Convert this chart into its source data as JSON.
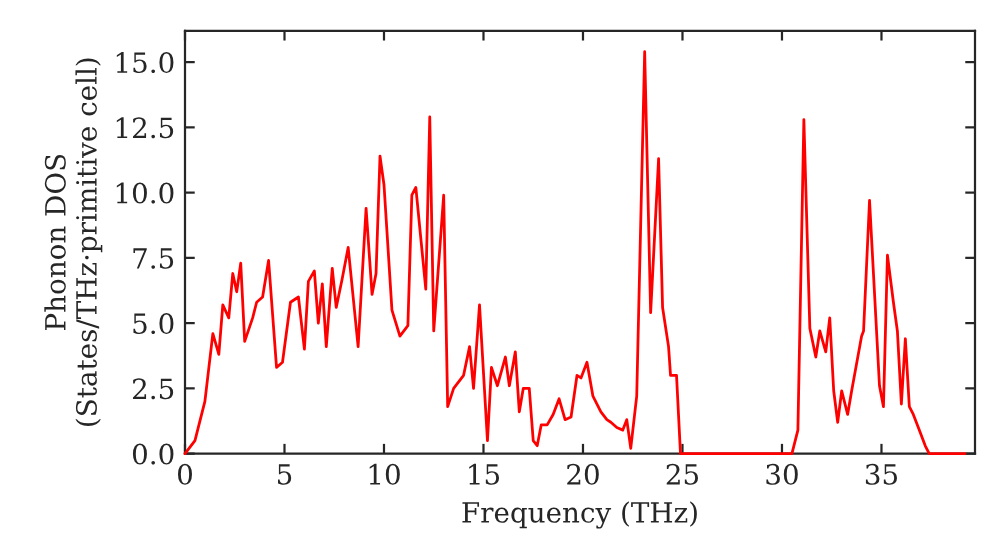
{
  "chart_data": {
    "type": "line",
    "xlabel": "Frequency (THz)",
    "ylabel": "Phonon DOS\n(States/THz·primitive cell)",
    "x": [
      0,
      0.5,
      1.0,
      1.4,
      1.7,
      1.9,
      2.2,
      2.4,
      2.6,
      2.8,
      3.0,
      3.4,
      3.6,
      3.9,
      4.2,
      4.6,
      4.9,
      5.3,
      5.7,
      6.0,
      6.2,
      6.5,
      6.7,
      6.9,
      7.1,
      7.4,
      7.6,
      7.9,
      8.2,
      8.7,
      9.1,
      9.4,
      9.6,
      9.8,
      10.0,
      10.4,
      10.8,
      11.2,
      11.4,
      11.6,
      12.1,
      12.3,
      12.5,
      13.0,
      13.2,
      13.5,
      14.0,
      14.3,
      14.5,
      14.8,
      15.2,
      15.4,
      15.7,
      16.1,
      16.3,
      16.6,
      16.8,
      17.0,
      17.3,
      17.5,
      17.7,
      17.9,
      18.2,
      18.5,
      18.8,
      19.1,
      19.4,
      19.7,
      19.9,
      20.2,
      20.5,
      20.9,
      21.2,
      21.4,
      21.7,
      22.0,
      22.2,
      22.4,
      22.7,
      23.1,
      23.4,
      23.8,
      24.0,
      24.3,
      24.4,
      24.7,
      24.9,
      30.5,
      30.8,
      31.1,
      31.4,
      31.7,
      31.9,
      32.2,
      32.4,
      32.6,
      32.8,
      33.0,
      33.3,
      33.5,
      34.0,
      34.1,
      34.4,
      34.9,
      35.1,
      35.3,
      35.6,
      35.8,
      36.0,
      36.2,
      36.4,
      36.6,
      36.9,
      37.2,
      37.4,
      39.2
    ],
    "series": [
      {
        "color": "#ff0000",
        "values": [
          0,
          0.5,
          2.0,
          4.6,
          3.8,
          5.7,
          5.2,
          6.9,
          6.2,
          7.3,
          4.3,
          5.2,
          5.8,
          6.0,
          7.4,
          3.3,
          3.5,
          5.8,
          6.0,
          4.0,
          6.6,
          7.0,
          5.0,
          6.5,
          4.1,
          7.1,
          5.6,
          6.7,
          7.9,
          4.1,
          9.4,
          6.1,
          6.9,
          11.4,
          10.3,
          5.5,
          4.5,
          4.9,
          9.9,
          10.2,
          6.3,
          12.9,
          4.7,
          9.9,
          1.8,
          2.5,
          3.0,
          4.1,
          2.5,
          5.7,
          0.5,
          3.3,
          2.6,
          3.7,
          2.6,
          3.9,
          1.6,
          2.5,
          2.5,
          0.5,
          0.3,
          1.1,
          1.1,
          1.5,
          2.1,
          1.3,
          1.4,
          3.0,
          2.9,
          3.5,
          2.2,
          1.6,
          1.3,
          1.2,
          1.0,
          0.9,
          1.3,
          0.2,
          2.2,
          15.4,
          5.4,
          11.3,
          5.6,
          4.1,
          3.0,
          3.0,
          0,
          0,
          0.9,
          12.8,
          4.8,
          3.7,
          4.7,
          3.9,
          5.2,
          2.4,
          1.2,
          2.4,
          1.5,
          2.4,
          4.5,
          4.7,
          9.7,
          2.6,
          1.8,
          7.6,
          5.8,
          4.7,
          1.9,
          4.4,
          1.8,
          1.5,
          0.9,
          0.3,
          0,
          0
        ]
      }
    ],
    "xlim": [
      0,
      39.7
    ],
    "ylim": [
      0,
      16.2
    ],
    "xticks": [
      0,
      5,
      10,
      15,
      20,
      25,
      30,
      35
    ],
    "yticks": [
      {
        "value": 0,
        "label": "0.0"
      },
      {
        "value": 2.5,
        "label": "2.5"
      },
      {
        "value": 5,
        "label": "5.0"
      },
      {
        "value": 7.5,
        "label": "7.5"
      },
      {
        "value": 10,
        "label": "10.0"
      },
      {
        "value": 12.5,
        "label": "12.5"
      },
      {
        "value": 15,
        "label": "15.0"
      }
    ],
    "line_style": "solid",
    "marker": "none",
    "grid": false
  }
}
